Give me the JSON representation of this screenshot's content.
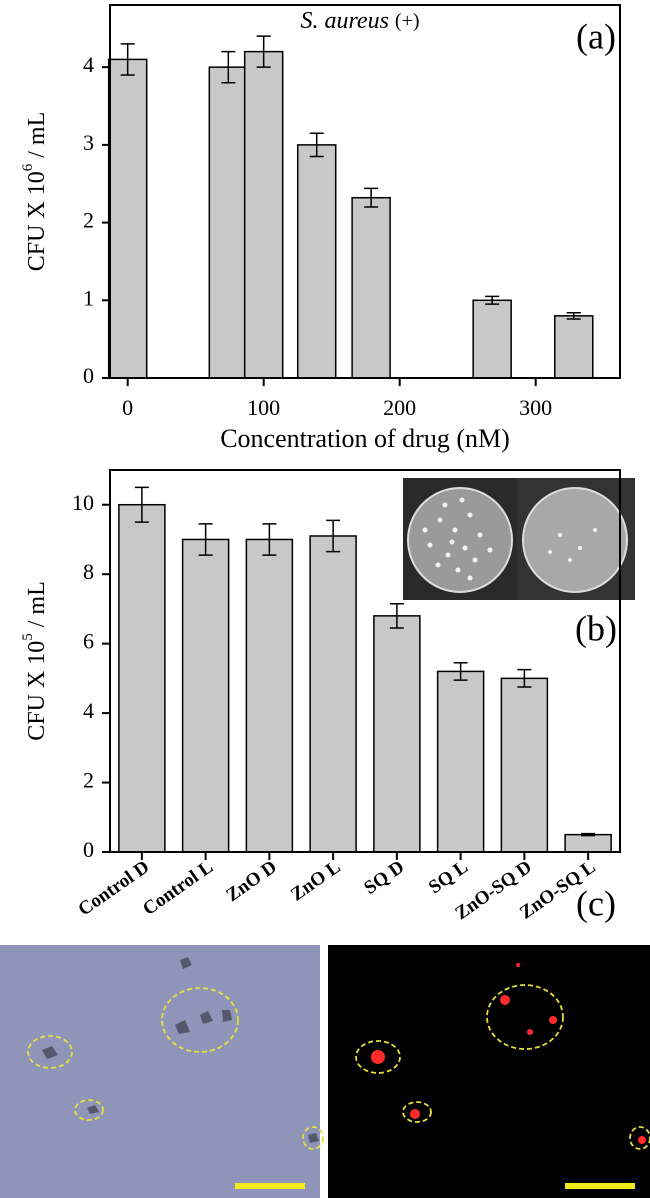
{
  "chart_data": [
    {
      "type": "bar",
      "species": "S. aureus",
      "gram": "(+)",
      "panel_label": "(a)",
      "x_label": "Concentration of drug (nM)",
      "y_label_parts": [
        "CFU X 10",
        "6",
        " / mL"
      ],
      "x": [
        0,
        74,
        100,
        139,
        179,
        268,
        328
      ],
      "values": [
        4.1,
        4.0,
        4.2,
        3.0,
        2.32,
        1.0,
        0.8
      ],
      "errors": [
        0.2,
        0.2,
        0.2,
        0.15,
        0.12,
        0.05,
        0.04
      ],
      "color": "#c8c8c8",
      "xlim": [
        -13,
        362
      ],
      "xticks": [
        0,
        100,
        200,
        300
      ],
      "ylim": [
        0,
        4.8
      ],
      "yticks": [
        0,
        1,
        2,
        3,
        4
      ]
    },
    {
      "type": "bar",
      "panel_label": "(b)",
      "y_label_parts": [
        "CFU X 10",
        "5",
        " / mL"
      ],
      "categories": [
        "Control D",
        "Control L",
        "ZnO D",
        "ZnO L",
        "SQ D",
        "SQ L",
        "ZnO-SQ D",
        "ZnO-SQ L"
      ],
      "values": [
        10,
        9,
        9,
        9.1,
        6.8,
        5.2,
        5.0,
        0.5
      ],
      "errors": [
        0.5,
        0.45,
        0.45,
        0.45,
        0.35,
        0.25,
        0.25,
        0.03
      ],
      "color": "#c8c8c8",
      "ylim": [
        0,
        11
      ],
      "yticks": [
        0,
        2,
        4,
        6,
        8,
        10
      ]
    }
  ],
  "panel_c_label": "(c)"
}
